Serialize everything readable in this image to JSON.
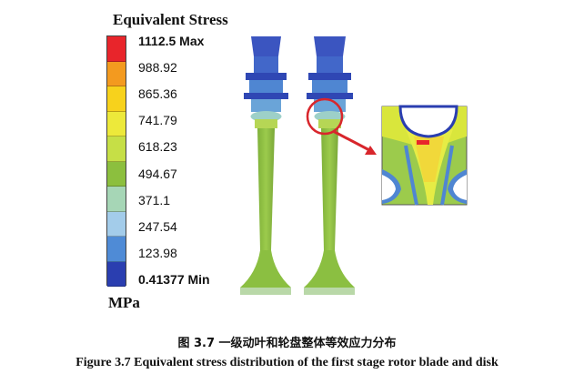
{
  "legend": {
    "title": "Equivalent Stress",
    "levels": [
      "1112.5 Max",
      "988.92",
      "865.36",
      "741.79",
      "618.23",
      "494.67",
      "371.1",
      "247.54",
      "123.98",
      "0.41377 Min"
    ],
    "colors": [
      "#e8252b",
      "#f39a1f",
      "#f7d21c",
      "#ede93a",
      "#c6df46",
      "#8cbf3e",
      "#a6d6b6",
      "#a3ccea",
      "#4f8bd6",
      "#2a3eb0"
    ],
    "unit": "MPa"
  },
  "caption": {
    "chinese": "图 3.7 一级动叶和轮盘整体等效应力分布",
    "english": "Figure 3.7 Equivalent stress distribution of the first stage rotor blade and disk"
  }
}
